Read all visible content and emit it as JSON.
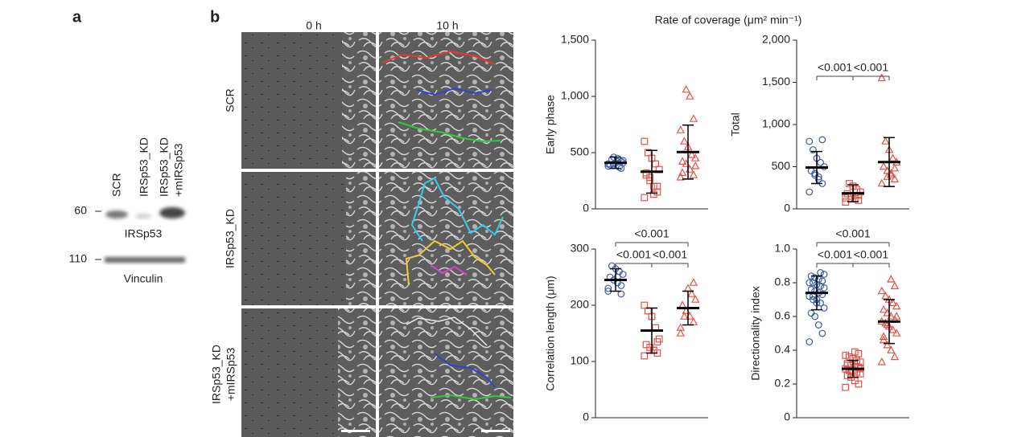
{
  "panel_a": {
    "label": "a",
    "lanes": [
      [
        "SCR"
      ],
      [
        "IRSp53_KD"
      ],
      [
        "IRSp53_KD",
        "+mIRSp53"
      ]
    ],
    "markers": [
      {
        "mw": "60",
        "name": "IRSp53"
      },
      {
        "mw": "110",
        "name": "Vinculin"
      }
    ]
  },
  "panel_b": {
    "label": "b",
    "columns": [
      "0 h",
      "10 h"
    ],
    "rows": [
      [
        "SCR"
      ],
      [
        "IRSp53_KD"
      ],
      [
        "IRSp53_KD",
        "+mIRSp53"
      ]
    ],
    "heading": "Rate of coverage (μm² min⁻¹)"
  },
  "chart_data": [
    {
      "type": "dot",
      "y_label": "Early phase",
      "ylim": [
        0,
        1500
      ],
      "yticks": [
        0,
        500,
        {
          "value": 1000,
          "label": "1,000"
        },
        {
          "value": 1500,
          "label": "1,500"
        }
      ],
      "series": [
        {
          "color": "#3b5ba5",
          "marker": "circle",
          "mean": 410,
          "sd": 50,
          "values": [
            380,
            420,
            450,
            400,
            390,
            430,
            370,
            410,
            440,
            400,
            360,
            420,
            460,
            390,
            410
          ]
        },
        {
          "color": "#e0524a",
          "marker": "square",
          "mean": 330,
          "sd": 190,
          "values": [
            100,
            150,
            200,
            250,
            300,
            350,
            400,
            450,
            500,
            600,
            200,
            130,
            280,
            320
          ]
        },
        {
          "color": "#e0524a",
          "marker": "triangle",
          "mean": 505,
          "sd": 240,
          "values": [
            280,
            300,
            350,
            400,
            420,
            450,
            480,
            550,
            600,
            700,
            800,
            1000,
            1060,
            320,
            380
          ]
        }
      ],
      "annotations": []
    },
    {
      "type": "dot",
      "y_label": "Total",
      "ylim": [
        0,
        2000
      ],
      "yticks": [
        0,
        500,
        {
          "value": 1000,
          "label": "1,000"
        },
        {
          "value": 1500,
          "label": "1,500"
        },
        {
          "value": 2000,
          "label": "2,000"
        }
      ],
      "series": [
        {
          "color": "#3b5ba5",
          "marker": "circle",
          "mean": 490,
          "sd": 190,
          "values": [
            200,
            300,
            350,
            400,
            450,
            500,
            550,
            600,
            700,
            800,
            820,
            380,
            420
          ]
        },
        {
          "color": "#e0524a",
          "marker": "square",
          "mean": 185,
          "sd": 100,
          "values": [
            80,
            100,
            120,
            150,
            180,
            200,
            230,
            270,
            300,
            130,
            160
          ]
        },
        {
          "color": "#e0524a",
          "marker": "triangle",
          "mean": 555,
          "sd": 290,
          "values": [
            300,
            350,
            400,
            450,
            500,
            550,
            600,
            700,
            800,
            1550,
            480,
            420,
            380
          ]
        }
      ],
      "annotations": [
        {
          "groups": [
            0,
            1
          ],
          "label": "<0.001"
        },
        {
          "groups": [
            1,
            2
          ],
          "label": "<0.001"
        }
      ]
    },
    {
      "type": "dot",
      "y_label": "Correlation length (μm)",
      "ylim": [
        0,
        300
      ],
      "yticks": [
        0,
        100,
        200,
        300
      ],
      "series": [
        {
          "color": "#3b5ba5",
          "marker": "circle",
          "mean": 245,
          "sd": 20,
          "values": [
            225,
            235,
            240,
            245,
            250,
            255,
            260,
            265,
            270,
            230,
            220,
            250
          ]
        },
        {
          "color": "#e0524a",
          "marker": "square",
          "mean": 155,
          "sd": 40,
          "values": [
            110,
            115,
            120,
            125,
            130,
            140,
            160,
            180,
            190,
            200,
            135,
            120
          ]
        },
        {
          "color": "#e0524a",
          "marker": "triangle",
          "mean": 195,
          "sd": 30,
          "values": [
            160,
            170,
            180,
            190,
            200,
            210,
            220,
            230,
            180,
            150,
            240
          ]
        }
      ],
      "annotations": [
        {
          "groups": [
            0,
            2
          ],
          "label": "<0.001"
        },
        {
          "groups": [
            0,
            1
          ],
          "label": "<0.001"
        },
        {
          "groups": [
            1,
            2
          ],
          "label": "<0.001"
        }
      ]
    },
    {
      "type": "dot",
      "y_label": "Directionality index",
      "ylim": [
        0,
        1
      ],
      "yticks": [
        0,
        {
          "value": 0.2,
          "label": "0.2"
        },
        {
          "value": 0.4,
          "label": "0.4"
        },
        {
          "value": 0.6,
          "label": "0.6"
        },
        {
          "value": 0.8,
          "label": "0.8"
        },
        {
          "value": 1,
          "label": "1.0"
        }
      ],
      "series": [
        {
          "color": "#3b5ba5",
          "marker": "circle",
          "mean": 0.74,
          "sd": 0.1,
          "values": [
            0.45,
            0.5,
            0.55,
            0.6,
            0.62,
            0.65,
            0.68,
            0.7,
            0.7,
            0.72,
            0.73,
            0.74,
            0.75,
            0.76,
            0.77,
            0.78,
            0.79,
            0.8,
            0.8,
            0.81,
            0.82,
            0.83,
            0.84,
            0.85,
            0.86,
            0.68,
            0.72
          ]
        },
        {
          "color": "#e0524a",
          "marker": "square",
          "mean": 0.29,
          "sd": 0.05,
          "values": [
            0.18,
            0.2,
            0.22,
            0.24,
            0.25,
            0.26,
            0.27,
            0.28,
            0.28,
            0.29,
            0.3,
            0.3,
            0.31,
            0.32,
            0.33,
            0.34,
            0.35,
            0.36,
            0.37,
            0.38,
            0.39,
            0.27,
            0.31,
            0.29
          ]
        },
        {
          "color": "#e0524a",
          "marker": "triangle",
          "mean": 0.57,
          "sd": 0.13,
          "values": [
            0.33,
            0.36,
            0.4,
            0.43,
            0.46,
            0.5,
            0.52,
            0.54,
            0.56,
            0.57,
            0.58,
            0.6,
            0.62,
            0.64,
            0.66,
            0.68,
            0.7,
            0.72,
            0.75,
            0.78,
            0.82,
            0.55,
            0.48,
            0.6
          ]
        }
      ],
      "annotations": [
        {
          "groups": [
            0,
            2
          ],
          "label": "<0.001"
        },
        {
          "groups": [
            0,
            1
          ],
          "label": "<0.001"
        },
        {
          "groups": [
            1,
            2
          ],
          "label": "<0.001"
        }
      ]
    }
  ]
}
